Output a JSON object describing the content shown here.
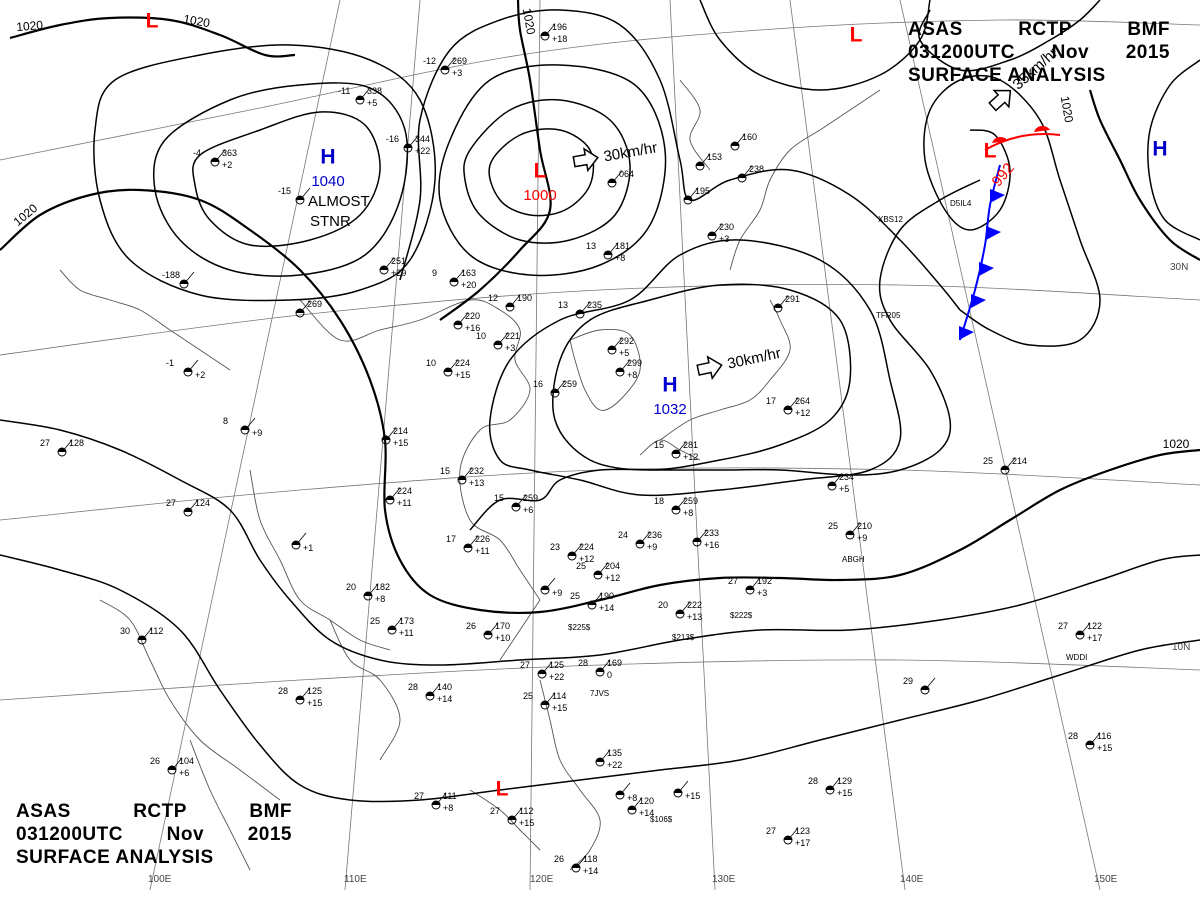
{
  "header": {
    "line1": [
      "ASAS",
      "RCTP",
      "BMF"
    ],
    "line2": [
      "031200UTC",
      "Nov",
      "2015"
    ],
    "line3": "SURFACE  ANALYSIS"
  },
  "colors": {
    "low": "#ff0000",
    "high": "#0000cc",
    "cold_front": "#0000ff",
    "warm_front": "#ff0000",
    "lines": "#000000"
  },
  "pressure_centers": [
    {
      "type": "L",
      "value": ""
    },
    {
      "type": "H",
      "value": "1040"
    },
    {
      "type": "L",
      "value": "1000"
    },
    {
      "type": "H",
      "value": "1032"
    },
    {
      "type": "L",
      "value": "992"
    },
    {
      "type": "L",
      "value": ""
    },
    {
      "type": "H",
      "value": ""
    },
    {
      "type": "L",
      "value": ""
    }
  ],
  "movements": [
    "30km/hr",
    "30km/hr",
    "35km/hr"
  ],
  "notes": {
    "almost": "ALMOST",
    "stnr": "STNR"
  },
  "isobar_labels": [
    "1020",
    "1020",
    "1020",
    "1020",
    "1020",
    "1020"
  ],
  "graticule": {
    "lon": [
      "100E",
      "110E",
      "120E",
      "130E",
      "140E",
      "150E"
    ],
    "lat": [
      "30N",
      "10N"
    ]
  },
  "station_plots": [
    {
      "tl": "-11",
      "tr": "338",
      "br": "+5"
    },
    {
      "tl": "-4",
      "tr": "363",
      "br": "+2"
    },
    {
      "tl": "-15",
      "tr": "",
      "br": ""
    },
    {
      "tl": "-12",
      "tr": "269",
      "br": "+3"
    },
    {
      "tl": "-16",
      "tr": "344",
      "br": "+22"
    },
    {
      "tl": "",
      "tr": "196",
      "br": "+18"
    },
    {
      "tl": "",
      "tr": "064",
      "br": ""
    },
    {
      "tl": "",
      "tr": "153",
      "br": ""
    },
    {
      "tl": "",
      "tr": "195",
      "br": ""
    },
    {
      "tl": "",
      "tr": "230",
      "br": "+3"
    },
    {
      "tl": "",
      "tr": "160",
      "br": ""
    },
    {
      "tl": "",
      "tr": "238",
      "br": ""
    },
    {
      "tl": "13",
      "tr": "181",
      "br": "+8"
    },
    {
      "tl": "",
      "tr": "251",
      "br": "+29"
    },
    {
      "tl": "9",
      "tr": "163",
      "br": "+20"
    },
    {
      "tl": "",
      "tr": "220",
      "br": "+16"
    },
    {
      "tl": "12",
      "tr": "190",
      "br": ""
    },
    {
      "tl": "10",
      "tr": "221",
      "br": "+3"
    },
    {
      "tl": "13",
      "tr": "235",
      "br": ""
    },
    {
      "tl": "",
      "tr": "292",
      "br": "+5"
    },
    {
      "tl": "",
      "tr": "299",
      "br": "+8"
    },
    {
      "tl": "",
      "tr": "291",
      "br": ""
    },
    {
      "tl": "",
      "tr": "269",
      "br": ""
    },
    {
      "tl": "-188",
      "tr": "",
      "br": ""
    },
    {
      "tl": "-1",
      "tr": "",
      "br": "+2"
    },
    {
      "tl": "8",
      "tr": "",
      "br": "+9"
    },
    {
      "tl": "",
      "tr": "214",
      "br": "+15"
    },
    {
      "tl": "10",
      "tr": "224",
      "br": "+15"
    },
    {
      "tl": "16",
      "tr": "259",
      "br": ""
    },
    {
      "tl": "17",
      "tr": "264",
      "br": "+12"
    },
    {
      "tl": "15",
      "tr": "281",
      "br": "+12"
    },
    {
      "tl": "15",
      "tr": "232",
      "br": "+13"
    },
    {
      "tl": "",
      "tr": "224",
      "br": "+11"
    },
    {
      "tl": "15",
      "tr": "259",
      "br": "+6"
    },
    {
      "tl": "18",
      "tr": "259",
      "br": "+8"
    },
    {
      "tl": "24",
      "tr": "236",
      "br": "+9"
    },
    {
      "tl": "",
      "tr": "233",
      "br": "+16"
    },
    {
      "tl": "17",
      "tr": "226",
      "br": "+11"
    },
    {
      "tl": "23",
      "tr": "224",
      "br": "+12"
    },
    {
      "tl": "25",
      "tr": "204",
      "br": "+12"
    },
    {
      "tl": "",
      "tr": "234",
      "br": "+5"
    },
    {
      "tl": "25",
      "tr": "210",
      "br": "+9"
    },
    {
      "tl": "25",
      "tr": "214",
      "br": ""
    },
    {
      "tl": "27",
      "tr": "128",
      "br": ""
    },
    {
      "tl": "27",
      "tr": "124",
      "br": ""
    },
    {
      "tl": "",
      "tr": "",
      "br": "+1"
    },
    {
      "tl": "20",
      "tr": "182",
      "br": "+8"
    },
    {
      "tl": "25",
      "tr": "173",
      "br": "+11"
    },
    {
      "tl": "26",
      "tr": "170",
      "br": "+10"
    },
    {
      "tl": "",
      "tr": "",
      "br": "+9"
    },
    {
      "tl": "25",
      "tr": "190",
      "br": "+14"
    },
    {
      "tl": "20",
      "tr": "222",
      "br": "+13"
    },
    {
      "tl": "27",
      "tr": "192",
      "br": "+3"
    },
    {
      "tl": "27",
      "tr": "122",
      "br": "+17"
    },
    {
      "tl": "30",
      "tr": "112",
      "br": ""
    },
    {
      "tl": "28",
      "tr": "125",
      "br": "+15"
    },
    {
      "tl": "28",
      "tr": "140",
      "br": "+14"
    },
    {
      "tl": "27",
      "tr": "125",
      "br": "+22"
    },
    {
      "tl": "28",
      "tr": "169",
      "br": "0"
    },
    {
      "tl": "25",
      "tr": "114",
      "br": "+15"
    },
    {
      "tl": "29",
      "tr": "",
      "br": ""
    },
    {
      "tl": "28",
      "tr": "116",
      "br": "+15"
    },
    {
      "tl": "26",
      "tr": "104",
      "br": "+6"
    },
    {
      "tl": "",
      "tr": "135",
      "br": "+22"
    },
    {
      "tl": "28",
      "tr": "129",
      "br": "+15"
    },
    {
      "tl": "27",
      "tr": "111",
      "br": "+8"
    },
    {
      "tl": "27",
      "tr": "112",
      "br": "+15"
    },
    {
      "tl": "",
      "tr": "120",
      "br": "+14"
    },
    {
      "tl": "",
      "tr": "",
      "br": "+15"
    },
    {
      "tl": "27",
      "tr": "123",
      "br": "+17"
    },
    {
      "tl": "26",
      "tr": "118",
      "br": "+14"
    },
    {
      "tl": "",
      "tr": "",
      "br": "+8"
    }
  ],
  "station_codes": [
    "XBS12",
    "D5IL4",
    "TFR05",
    "ABGH",
    "WDDI",
    "7JVS",
    "$225$",
    "$213$",
    "$222$",
    "$106$"
  ]
}
